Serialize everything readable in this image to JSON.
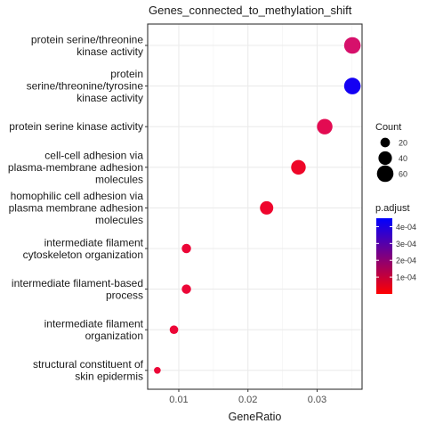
{
  "chart_data": {
    "type": "scatter",
    "title": "Genes_connected_to_methylation_shift",
    "xlabel": "GeneRatio",
    "ylabel": "",
    "xlim": [
      0.0055,
      0.0365
    ],
    "x_ticks": [
      {
        "value": 0.01,
        "label": "0.01"
      },
      {
        "value": 0.02,
        "label": "0.02"
      },
      {
        "value": 0.03,
        "label": "0.03"
      }
    ],
    "categories": [
      "protein serine/threonine\nkinase activity",
      "protein\nserine/threonine/tyrosine\nkinase activity",
      "protein serine kinase activity",
      "cell-cell adhesion via\nplasma-membrane adhesion\nmolecules",
      "homophilic cell adhesion via\nplasma membrane adhesion\nmolecules",
      "intermediate filament\ncytoskeleton organization",
      "intermediate filament-based\nprocess",
      "intermediate filament\norganization",
      "structural constituent of\nskin epidermis"
    ],
    "points": [
      {
        "category": "protein serine/threonine\nkinase activity",
        "gene_ratio": 0.0351,
        "count": 60,
        "p_adjust": 3e-05,
        "color": "#d6106b"
      },
      {
        "category": "protein\nserine/threonine/tyrosine\nkinase activity",
        "gene_ratio": 0.0351,
        "count": 60,
        "p_adjust": 0.00045,
        "color": "#1400f3"
      },
      {
        "category": "protein serine kinase activity",
        "gene_ratio": 0.0311,
        "count": 53,
        "p_adjust": 3e-05,
        "color": "#e30b52"
      },
      {
        "category": "cell-cell adhesion via\nplasma-membrane adhesion\nmolecules",
        "gene_ratio": 0.0273,
        "count": 47,
        "p_adjust": 1e-05,
        "color": "#ee0628"
      },
      {
        "category": "homophilic cell adhesion via\nplasma membrane adhesion\nmolecules",
        "gene_ratio": 0.0227,
        "count": 39,
        "p_adjust": 1e-05,
        "color": "#ef052d"
      },
      {
        "category": "intermediate filament\ncytoskeleton organization",
        "gene_ratio": 0.0111,
        "count": 19,
        "p_adjust": 2e-05,
        "color": "#ec0637"
      },
      {
        "category": "intermediate filament-based\nprocess",
        "gene_ratio": 0.0111,
        "count": 19,
        "p_adjust": 2e-05,
        "color": "#ec0637"
      },
      {
        "category": "intermediate filament\norganization",
        "gene_ratio": 0.0093,
        "count": 16,
        "p_adjust": 2e-05,
        "color": "#ec0637"
      },
      {
        "category": "structural constituent of\nskin epidermis",
        "gene_ratio": 0.0069,
        "count": 10,
        "p_adjust": 2e-05,
        "color": "#ec0637"
      }
    ],
    "legend_size": {
      "title": "Count",
      "entries": [
        {
          "label": "20",
          "count": 20
        },
        {
          "label": "40",
          "count": 40
        },
        {
          "label": "60",
          "count": 60
        }
      ]
    },
    "legend_color": {
      "title": "p.adjust",
      "range": [
        0.0,
        0.00045
      ],
      "low_color": "#ff0000",
      "high_color": "#0000ff",
      "ticks": [
        {
          "value": 0.0001,
          "label": "1e-04"
        },
        {
          "value": 0.0002,
          "label": "2e-04"
        },
        {
          "value": 0.0003,
          "label": "3e-04"
        },
        {
          "value": 0.0004,
          "label": "4e-04"
        }
      ]
    },
    "grid": true,
    "legend_placement": "right"
  }
}
